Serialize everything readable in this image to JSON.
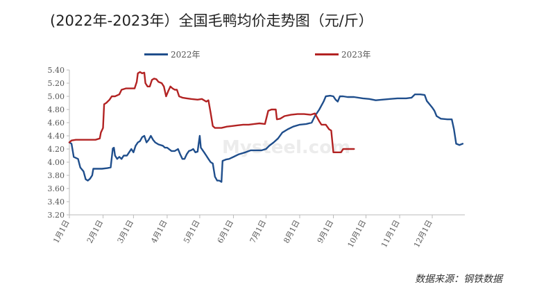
{
  "chart_data": {
    "type": "line",
    "title": "(2022年-2023年）全国毛鸭均价走势图（元/斤）",
    "source": "数据来源：钢铁数据",
    "watermark": "Mysteel.com",
    "xlabel": "",
    "ylabel": "",
    "ylim": [
      3.2,
      5.4
    ],
    "yticks": [
      "3.20",
      "3.40",
      "3.60",
      "3.80",
      "4.00",
      "4.20",
      "4.40",
      "4.60",
      "4.80",
      "5.00",
      "5.20",
      "5.40"
    ],
    "xticks": [
      "1月1日",
      "2月1日",
      "3月1日",
      "4月1日",
      "5月1日",
      "6月1日",
      "7月1日",
      "8月1日",
      "9月1日",
      "10月1日",
      "11月1日",
      "12月1日"
    ],
    "xtick_days": [
      0,
      31,
      59,
      90,
      120,
      151,
      181,
      212,
      243,
      273,
      304,
      334
    ],
    "x_range_days": [
      0,
      364
    ],
    "legend_position": "top",
    "series": [
      {
        "name": "2022年",
        "color": "#1f4e8c",
        "points": [
          [
            0,
            4.3
          ],
          [
            2,
            4.28
          ],
          [
            4,
            4.08
          ],
          [
            8,
            4.05
          ],
          [
            10,
            3.92
          ],
          [
            13,
            3.86
          ],
          [
            15,
            3.74
          ],
          [
            17,
            3.72
          ],
          [
            19,
            3.75
          ],
          [
            21,
            3.8
          ],
          [
            22,
            3.9
          ],
          [
            25,
            3.9
          ],
          [
            30,
            3.9
          ],
          [
            35,
            3.91
          ],
          [
            38,
            3.92
          ],
          [
            39,
            4.07
          ],
          [
            40,
            4.21
          ],
          [
            41,
            4.22
          ],
          [
            42,
            4.1
          ],
          [
            44,
            4.05
          ],
          [
            46,
            4.08
          ],
          [
            48,
            4.05
          ],
          [
            50,
            4.1
          ],
          [
            53,
            4.1
          ],
          [
            55,
            4.15
          ],
          [
            57,
            4.2
          ],
          [
            59,
            4.15
          ],
          [
            61,
            4.25
          ],
          [
            63,
            4.3
          ],
          [
            65,
            4.32
          ],
          [
            67,
            4.38
          ],
          [
            69,
            4.4
          ],
          [
            71,
            4.3
          ],
          [
            73,
            4.34
          ],
          [
            75,
            4.4
          ],
          [
            77,
            4.34
          ],
          [
            79,
            4.3
          ],
          [
            82,
            4.27
          ],
          [
            86,
            4.25
          ],
          [
            88,
            4.22
          ],
          [
            90,
            4.22
          ],
          [
            94,
            4.17
          ],
          [
            97,
            4.17
          ],
          [
            100,
            4.2
          ],
          [
            102,
            4.12
          ],
          [
            104,
            4.05
          ],
          [
            106,
            4.05
          ],
          [
            108,
            4.12
          ],
          [
            110,
            4.17
          ],
          [
            112,
            4.18
          ],
          [
            114,
            4.2
          ],
          [
            116,
            4.15
          ],
          [
            118,
            4.16
          ],
          [
            119,
            4.28
          ],
          [
            120,
            4.4
          ],
          [
            121,
            4.22
          ],
          [
            124,
            4.15
          ],
          [
            126,
            4.1
          ],
          [
            128,
            4.05
          ],
          [
            130,
            4.0
          ],
          [
            132,
            3.98
          ],
          [
            134,
            3.78
          ],
          [
            136,
            3.72
          ],
          [
            138,
            3.72
          ],
          [
            140,
            3.7
          ],
          [
            141,
            4.02
          ],
          [
            144,
            4.04
          ],
          [
            147,
            4.05
          ],
          [
            151,
            4.08
          ],
          [
            156,
            4.12
          ],
          [
            162,
            4.15
          ],
          [
            167,
            4.18
          ],
          [
            172,
            4.18
          ],
          [
            177,
            4.18
          ],
          [
            181,
            4.2
          ],
          [
            184,
            4.25
          ],
          [
            188,
            4.3
          ],
          [
            192,
            4.36
          ],
          [
            196,
            4.45
          ],
          [
            201,
            4.5
          ],
          [
            206,
            4.54
          ],
          [
            212,
            4.57
          ],
          [
            218,
            4.58
          ],
          [
            223,
            4.6
          ],
          [
            226,
            4.7
          ],
          [
            230,
            4.8
          ],
          [
            234,
            4.92
          ],
          [
            236,
            5.0
          ],
          [
            240,
            5.01
          ],
          [
            243,
            5.0
          ],
          [
            245,
            4.95
          ],
          [
            247,
            4.92
          ],
          [
            249,
            5.0
          ],
          [
            252,
            5.0
          ],
          [
            256,
            4.99
          ],
          [
            262,
            4.99
          ],
          [
            270,
            4.97
          ],
          [
            276,
            4.96
          ],
          [
            282,
            4.94
          ],
          [
            288,
            4.95
          ],
          [
            295,
            4.96
          ],
          [
            302,
            4.97
          ],
          [
            310,
            4.97
          ],
          [
            315,
            4.98
          ],
          [
            318,
            5.03
          ],
          [
            323,
            5.03
          ],
          [
            327,
            5.02
          ],
          [
            329,
            4.93
          ],
          [
            332,
            4.87
          ],
          [
            334,
            4.83
          ],
          [
            336,
            4.78
          ],
          [
            338,
            4.7
          ],
          [
            342,
            4.66
          ],
          [
            348,
            4.65
          ],
          [
            352,
            4.65
          ],
          [
            354,
            4.5
          ],
          [
            356,
            4.28
          ],
          [
            359,
            4.26
          ],
          [
            362,
            4.28
          ]
        ]
      },
      {
        "name": "2023年",
        "color": "#b22222",
        "points": [
          [
            0,
            4.3
          ],
          [
            2,
            4.33
          ],
          [
            6,
            4.34
          ],
          [
            12,
            4.34
          ],
          [
            18,
            4.34
          ],
          [
            24,
            4.34
          ],
          [
            28,
            4.36
          ],
          [
            29,
            4.45
          ],
          [
            31,
            4.52
          ],
          [
            32,
            4.88
          ],
          [
            34,
            4.9
          ],
          [
            37,
            4.95
          ],
          [
            39,
            5.0
          ],
          [
            42,
            5.0
          ],
          [
            46,
            5.03
          ],
          [
            48,
            5.1
          ],
          [
            52,
            5.12
          ],
          [
            56,
            5.12
          ],
          [
            60,
            5.12
          ],
          [
            62,
            5.22
          ],
          [
            63,
            5.35
          ],
          [
            65,
            5.37
          ],
          [
            67,
            5.35
          ],
          [
            69,
            5.36
          ],
          [
            70,
            5.2
          ],
          [
            72,
            5.15
          ],
          [
            74,
            5.15
          ],
          [
            76,
            5.25
          ],
          [
            78,
            5.27
          ],
          [
            80,
            5.26
          ],
          [
            82,
            5.22
          ],
          [
            85,
            5.2
          ],
          [
            87,
            5.15
          ],
          [
            89,
            5.0
          ],
          [
            91,
            5.08
          ],
          [
            93,
            5.15
          ],
          [
            95,
            5.12
          ],
          [
            97,
            5.1
          ],
          [
            99,
            5.1
          ],
          [
            101,
            5.0
          ],
          [
            104,
            4.98
          ],
          [
            108,
            4.97
          ],
          [
            112,
            4.96
          ],
          [
            118,
            4.95
          ],
          [
            122,
            4.96
          ],
          [
            126,
            4.92
          ],
          [
            128,
            4.94
          ],
          [
            130,
            4.75
          ],
          [
            132,
            4.55
          ],
          [
            134,
            4.52
          ],
          [
            140,
            4.52
          ],
          [
            145,
            4.54
          ],
          [
            150,
            4.55
          ],
          [
            155,
            4.56
          ],
          [
            160,
            4.57
          ],
          [
            165,
            4.57
          ],
          [
            170,
            4.58
          ],
          [
            175,
            4.59
          ],
          [
            180,
            4.58
          ],
          [
            183,
            4.78
          ],
          [
            186,
            4.8
          ],
          [
            190,
            4.8
          ],
          [
            191,
            4.65
          ],
          [
            194,
            4.66
          ],
          [
            198,
            4.7
          ],
          [
            204,
            4.72
          ],
          [
            210,
            4.73
          ],
          [
            216,
            4.73
          ],
          [
            222,
            4.72
          ],
          [
            226,
            4.74
          ],
          [
            230,
            4.62
          ],
          [
            232,
            4.57
          ],
          [
            236,
            4.57
          ],
          [
            239,
            4.5
          ],
          [
            241,
            4.48
          ],
          [
            243,
            4.15
          ],
          [
            250,
            4.15
          ],
          [
            252,
            4.2
          ],
          [
            256,
            4.2
          ],
          [
            262,
            4.2
          ]
        ]
      }
    ]
  }
}
